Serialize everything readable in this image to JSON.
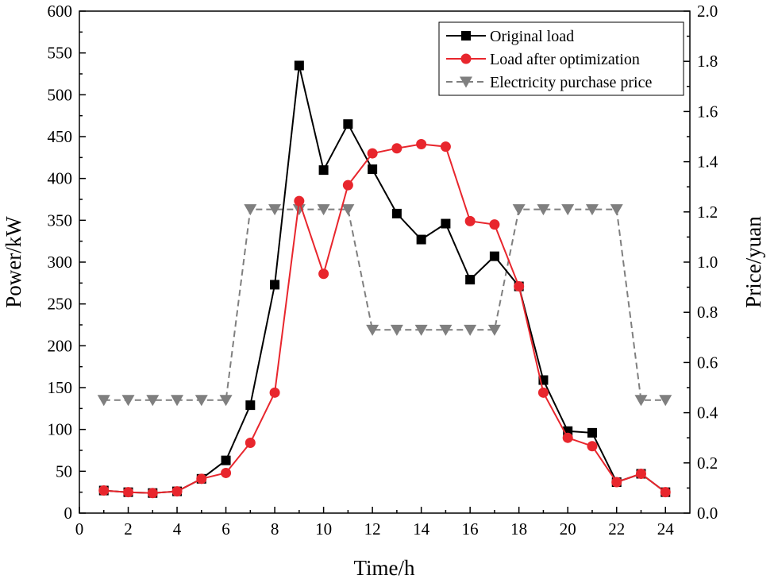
{
  "chart_data": {
    "type": "line",
    "xlabel": "Time/h",
    "ylabel": "Power/kW",
    "y2label": "Price/yuan",
    "xlim": [
      0,
      25
    ],
    "ylim": [
      0,
      600
    ],
    "y2lim": [
      0,
      2.0
    ],
    "xticks": [
      0,
      2,
      4,
      6,
      8,
      10,
      12,
      14,
      16,
      18,
      20,
      22,
      24
    ],
    "yticks": [
      0,
      50,
      100,
      150,
      200,
      250,
      300,
      350,
      400,
      450,
      500,
      550,
      600
    ],
    "y2ticks": [
      "0.0",
      "0.2",
      "0.4",
      "0.6",
      "0.8",
      "1.0",
      "1.2",
      "1.4",
      "1.6",
      "1.8",
      "2.0"
    ],
    "x": [
      1,
      2,
      3,
      4,
      5,
      6,
      7,
      8,
      9,
      10,
      11,
      12,
      13,
      14,
      15,
      16,
      17,
      18,
      19,
      20,
      21,
      22,
      23,
      24
    ],
    "legend_position": "top-right",
    "grid": false,
    "series": [
      {
        "name": "Original load",
        "axis": "left",
        "color": "#000000",
        "marker": "square",
        "line_style": "solid",
        "values": [
          27,
          25,
          24,
          26,
          41,
          63,
          129,
          273,
          535,
          410,
          465,
          411,
          358,
          327,
          346,
          279,
          307,
          271,
          159,
          98,
          96,
          37,
          47,
          25
        ]
      },
      {
        "name": "Load after optimization",
        "axis": "left",
        "color": "#e8262d",
        "marker": "circle",
        "line_style": "solid",
        "values": [
          27,
          25,
          24,
          26,
          41,
          48,
          84,
          144,
          373,
          286,
          392,
          430,
          436,
          441,
          438,
          349,
          345,
          271,
          144,
          90,
          80,
          37,
          47,
          25
        ]
      },
      {
        "name": "Electricity purchase price",
        "axis": "right",
        "color": "#7f7f7f",
        "marker": "triangle-down",
        "line_style": "dashed",
        "values": [
          0.45,
          0.45,
          0.45,
          0.45,
          0.45,
          0.45,
          1.21,
          1.21,
          1.21,
          1.21,
          1.21,
          0.73,
          0.73,
          0.73,
          0.73,
          0.73,
          0.73,
          1.21,
          1.21,
          1.21,
          1.21,
          1.21,
          0.45,
          0.45
        ]
      }
    ]
  }
}
